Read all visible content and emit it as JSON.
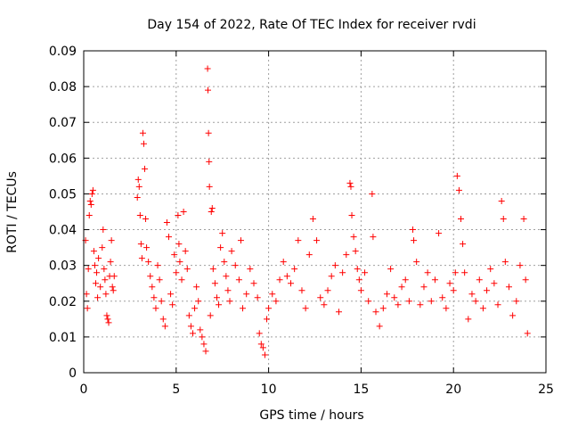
{
  "chart_data": {
    "type": "scatter",
    "title": "Day 154 of 2022, Rate Of TEC Index for receiver rvdi",
    "xlabel": "GPS time / hours",
    "ylabel": "ROTI / TECUs",
    "xlim": [
      0,
      25
    ],
    "ylim": [
      0,
      0.09
    ],
    "x_ticks": [
      "0",
      "5",
      "10",
      "15",
      "20",
      "25"
    ],
    "y_ticks": [
      "0",
      "0.01",
      "0.02",
      "0.03",
      "0.04",
      "0.05",
      "0.06",
      "0.07",
      "0.08",
      "0.09"
    ],
    "grid": true,
    "marker": "+",
    "color": "#ff0000",
    "points": [
      [
        0.1,
        0.037
      ],
      [
        0.15,
        0.022
      ],
      [
        0.2,
        0.018
      ],
      [
        0.25,
        0.029
      ],
      [
        0.3,
        0.044
      ],
      [
        0.35,
        0.048
      ],
      [
        0.4,
        0.047
      ],
      [
        0.45,
        0.05
      ],
      [
        0.5,
        0.051
      ],
      [
        0.55,
        0.034
      ],
      [
        0.6,
        0.03
      ],
      [
        0.65,
        0.025
      ],
      [
        0.7,
        0.028
      ],
      [
        0.75,
        0.021
      ],
      [
        0.8,
        0.032
      ],
      [
        0.9,
        0.024
      ],
      [
        1.0,
        0.035
      ],
      [
        1.05,
        0.04
      ],
      [
        1.1,
        0.029
      ],
      [
        1.15,
        0.026
      ],
      [
        1.2,
        0.022
      ],
      [
        1.25,
        0.016
      ],
      [
        1.3,
        0.015
      ],
      [
        1.35,
        0.014
      ],
      [
        1.4,
        0.027
      ],
      [
        1.45,
        0.031
      ],
      [
        1.5,
        0.037
      ],
      [
        1.55,
        0.024
      ],
      [
        1.6,
        0.023
      ],
      [
        1.65,
        0.027
      ],
      [
        2.9,
        0.049
      ],
      [
        2.95,
        0.054
      ],
      [
        3.0,
        0.052
      ],
      [
        3.05,
        0.044
      ],
      [
        3.1,
        0.036
      ],
      [
        3.15,
        0.032
      ],
      [
        3.2,
        0.067
      ],
      [
        3.25,
        0.064
      ],
      [
        3.3,
        0.057
      ],
      [
        3.35,
        0.043
      ],
      [
        3.4,
        0.035
      ],
      [
        3.5,
        0.031
      ],
      [
        3.6,
        0.027
      ],
      [
        3.7,
        0.024
      ],
      [
        3.8,
        0.021
      ],
      [
        3.9,
        0.018
      ],
      [
        4.0,
        0.03
      ],
      [
        4.1,
        0.026
      ],
      [
        4.2,
        0.02
      ],
      [
        4.3,
        0.015
      ],
      [
        4.4,
        0.013
      ],
      [
        4.5,
        0.042
      ],
      [
        4.6,
        0.038
      ],
      [
        4.7,
        0.022
      ],
      [
        4.8,
        0.019
      ],
      [
        4.9,
        0.033
      ],
      [
        5.0,
        0.028
      ],
      [
        5.1,
        0.044
      ],
      [
        5.15,
        0.036
      ],
      [
        5.2,
        0.031
      ],
      [
        5.3,
        0.026
      ],
      [
        5.4,
        0.045
      ],
      [
        5.5,
        0.034
      ],
      [
        5.6,
        0.029
      ],
      [
        5.7,
        0.016
      ],
      [
        5.8,
        0.013
      ],
      [
        5.9,
        0.011
      ],
      [
        6.0,
        0.018
      ],
      [
        6.1,
        0.024
      ],
      [
        6.2,
        0.02
      ],
      [
        6.3,
        0.012
      ],
      [
        6.4,
        0.01
      ],
      [
        6.5,
        0.008
      ],
      [
        6.6,
        0.006
      ],
      [
        6.7,
        0.085
      ],
      [
        6.72,
        0.079
      ],
      [
        6.75,
        0.067
      ],
      [
        6.78,
        0.059
      ],
      [
        6.8,
        0.052
      ],
      [
        6.85,
        0.016
      ],
      [
        6.9,
        0.045
      ],
      [
        6.95,
        0.046
      ],
      [
        7.0,
        0.029
      ],
      [
        7.1,
        0.025
      ],
      [
        7.2,
        0.021
      ],
      [
        7.3,
        0.019
      ],
      [
        7.4,
        0.035
      ],
      [
        7.5,
        0.039
      ],
      [
        7.6,
        0.031
      ],
      [
        7.7,
        0.027
      ],
      [
        7.8,
        0.023
      ],
      [
        7.9,
        0.02
      ],
      [
        8.0,
        0.034
      ],
      [
        8.2,
        0.03
      ],
      [
        8.4,
        0.026
      ],
      [
        8.5,
        0.037
      ],
      [
        8.6,
        0.018
      ],
      [
        8.8,
        0.022
      ],
      [
        9.0,
        0.029
      ],
      [
        9.2,
        0.025
      ],
      [
        9.4,
        0.021
      ],
      [
        9.5,
        0.011
      ],
      [
        9.6,
        0.008
      ],
      [
        9.7,
        0.007
      ],
      [
        9.8,
        0.005
      ],
      [
        9.9,
        0.015
      ],
      [
        10.0,
        0.018
      ],
      [
        10.2,
        0.022
      ],
      [
        10.4,
        0.02
      ],
      [
        10.6,
        0.026
      ],
      [
        10.8,
        0.031
      ],
      [
        11.0,
        0.027
      ],
      [
        11.2,
        0.025
      ],
      [
        11.4,
        0.029
      ],
      [
        11.6,
        0.037
      ],
      [
        11.8,
        0.023
      ],
      [
        12.0,
        0.018
      ],
      [
        12.2,
        0.033
      ],
      [
        12.4,
        0.043
      ],
      [
        12.6,
        0.037
      ],
      [
        12.8,
        0.021
      ],
      [
        13.0,
        0.019
      ],
      [
        13.2,
        0.023
      ],
      [
        13.4,
        0.027
      ],
      [
        13.6,
        0.03
      ],
      [
        13.8,
        0.017
      ],
      [
        14.0,
        0.028
      ],
      [
        14.2,
        0.033
      ],
      [
        14.4,
        0.053
      ],
      [
        14.45,
        0.052
      ],
      [
        14.5,
        0.044
      ],
      [
        14.6,
        0.038
      ],
      [
        14.7,
        0.034
      ],
      [
        14.8,
        0.029
      ],
      [
        14.9,
        0.026
      ],
      [
        15.0,
        0.023
      ],
      [
        15.2,
        0.028
      ],
      [
        15.4,
        0.02
      ],
      [
        15.6,
        0.05
      ],
      [
        15.65,
        0.038
      ],
      [
        15.8,
        0.017
      ],
      [
        16.0,
        0.013
      ],
      [
        16.2,
        0.018
      ],
      [
        16.4,
        0.022
      ],
      [
        16.6,
        0.029
      ],
      [
        16.8,
        0.021
      ],
      [
        17.0,
        0.019
      ],
      [
        17.2,
        0.024
      ],
      [
        17.4,
        0.026
      ],
      [
        17.6,
        0.02
      ],
      [
        17.8,
        0.04
      ],
      [
        17.85,
        0.037
      ],
      [
        18.0,
        0.031
      ],
      [
        18.2,
        0.019
      ],
      [
        18.4,
        0.024
      ],
      [
        18.6,
        0.028
      ],
      [
        18.8,
        0.02
      ],
      [
        19.0,
        0.026
      ],
      [
        19.2,
        0.039
      ],
      [
        19.4,
        0.021
      ],
      [
        19.6,
        0.018
      ],
      [
        19.8,
        0.025
      ],
      [
        20.0,
        0.023
      ],
      [
        20.1,
        0.028
      ],
      [
        20.2,
        0.055
      ],
      [
        20.3,
        0.051
      ],
      [
        20.4,
        0.043
      ],
      [
        20.5,
        0.036
      ],
      [
        20.6,
        0.028
      ],
      [
        20.8,
        0.015
      ],
      [
        21.0,
        0.022
      ],
      [
        21.2,
        0.02
      ],
      [
        21.4,
        0.026
      ],
      [
        21.6,
        0.018
      ],
      [
        21.8,
        0.023
      ],
      [
        22.0,
        0.029
      ],
      [
        22.2,
        0.025
      ],
      [
        22.4,
        0.019
      ],
      [
        22.6,
        0.048
      ],
      [
        22.7,
        0.043
      ],
      [
        22.8,
        0.031
      ],
      [
        23.0,
        0.024
      ],
      [
        23.2,
        0.016
      ],
      [
        23.4,
        0.02
      ],
      [
        23.6,
        0.03
      ],
      [
        23.8,
        0.043
      ],
      [
        23.9,
        0.026
      ],
      [
        24.0,
        0.011
      ]
    ]
  }
}
